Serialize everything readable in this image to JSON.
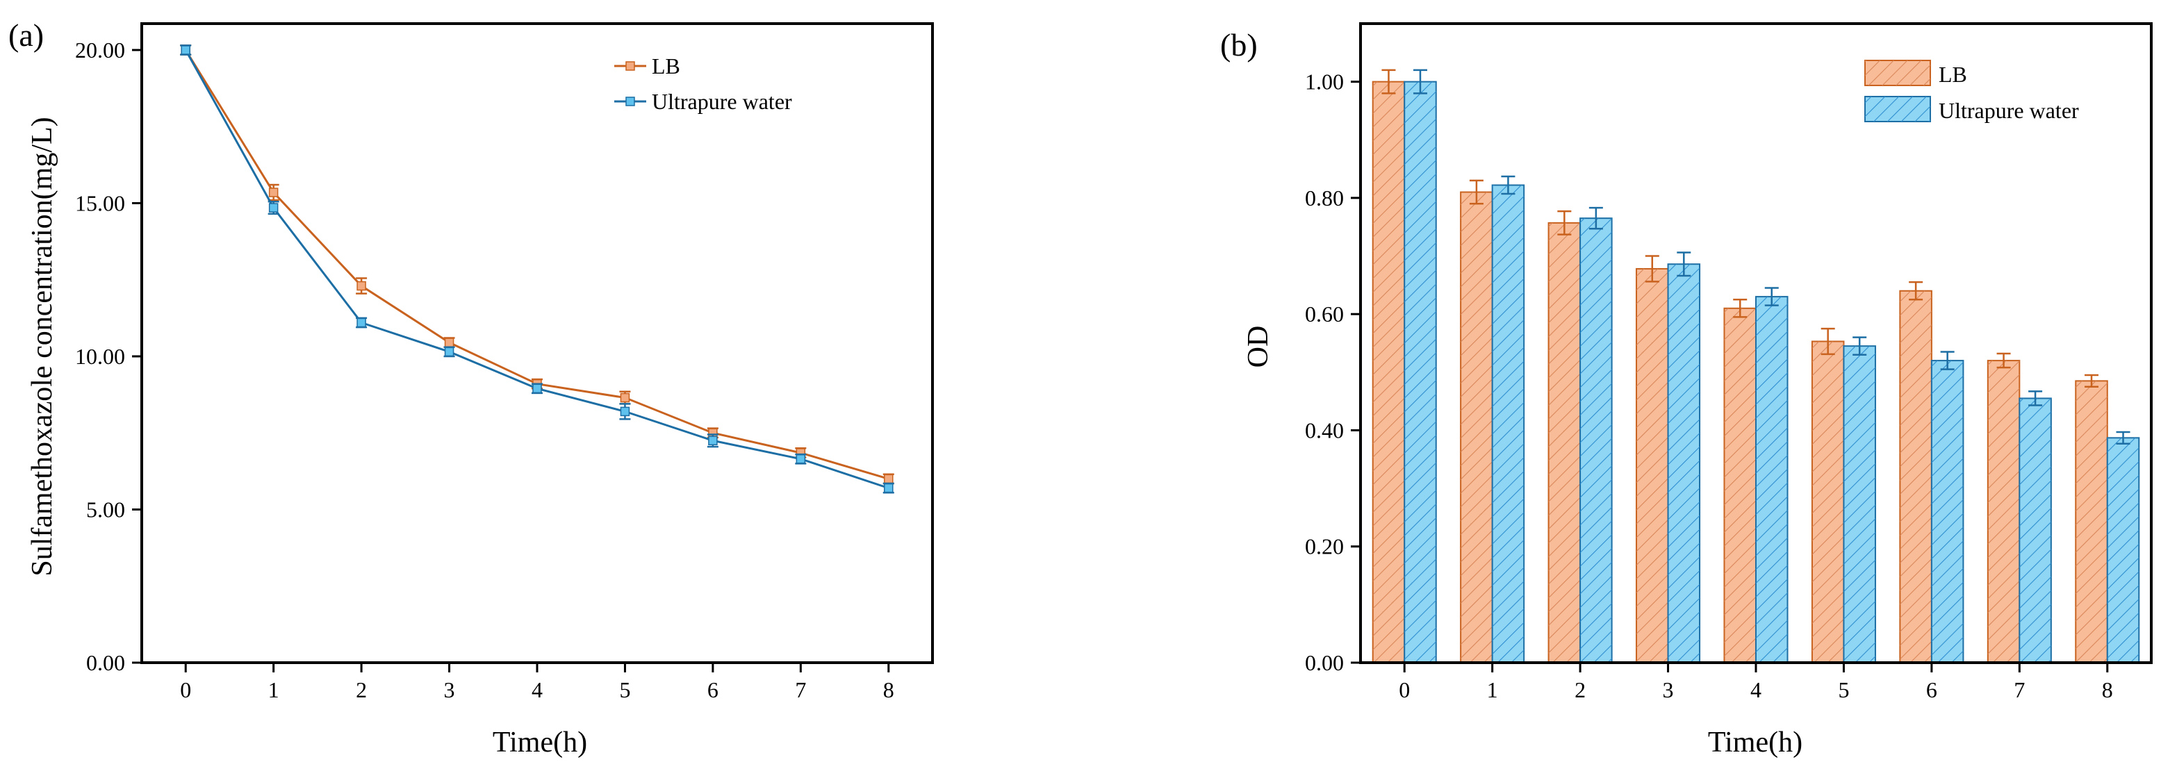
{
  "chart_data": [
    {
      "type": "line",
      "panel_label": "(a)",
      "title": "",
      "xlabel": "Time(h)",
      "ylabel": "Sulfamethoxazole concentration(mg/L)",
      "x": [
        0,
        1,
        2,
        3,
        4,
        5,
        6,
        7,
        8
      ],
      "x_ticks": [
        "0",
        "1",
        "2",
        "3",
        "4",
        "5",
        "6",
        "7",
        "8"
      ],
      "xlim": [
        -0.5,
        8.5
      ],
      "ylim": [
        0,
        20.0
      ],
      "y_ticks": [
        "0.00",
        "5.00",
        "10.00",
        "15.00",
        "20.00"
      ],
      "y_tick_values": [
        0,
        5,
        10,
        15,
        20
      ],
      "legend_position": "top-right",
      "grid": false,
      "series": [
        {
          "name": "LB",
          "color": "#c8621e",
          "marker_color": "#f2aa7e",
          "values": [
            20.0,
            15.35,
            12.3,
            10.45,
            9.1,
            8.65,
            7.5,
            6.85,
            6.0
          ],
          "errors": [
            0.15,
            0.25,
            0.25,
            0.15,
            0.15,
            0.2,
            0.15,
            0.15,
            0.15
          ]
        },
        {
          "name": "Ultrapure water",
          "color": "#1c6ea4",
          "marker_color": "#5ec1ee",
          "values": [
            20.0,
            14.85,
            11.1,
            10.15,
            8.95,
            8.2,
            7.25,
            6.65,
            5.7
          ],
          "errors": [
            0.15,
            0.2,
            0.15,
            0.15,
            0.15,
            0.25,
            0.2,
            0.15,
            0.15
          ]
        }
      ]
    },
    {
      "type": "bar",
      "panel_label": "(b)",
      "title": "",
      "xlabel": "Time(h)",
      "ylabel": "OD",
      "categories": [
        "0",
        "1",
        "2",
        "3",
        "4",
        "5",
        "6",
        "7",
        "8"
      ],
      "xlim": [
        -0.5,
        8.5
      ],
      "ylim": [
        0,
        1.1
      ],
      "y_ticks": [
        "0.00",
        "0.20",
        "0.40",
        "0.60",
        "0.80",
        "1.00"
      ],
      "y_tick_values": [
        0,
        0.2,
        0.4,
        0.6,
        0.8,
        1.0
      ],
      "legend_position": "top-right",
      "grid": false,
      "series": [
        {
          "name": "LB",
          "fill": "#f8bd98",
          "hatch": "#d9865a",
          "edge": "#c8621e",
          "values": [
            1.0,
            0.81,
            0.757,
            0.678,
            0.61,
            0.553,
            0.64,
            0.52,
            0.485
          ],
          "errors": [
            0.02,
            0.02,
            0.02,
            0.022,
            0.015,
            0.022,
            0.015,
            0.012,
            0.01
          ]
        },
        {
          "name": "Ultrapure water",
          "fill": "#8fd6f5",
          "hatch": "#2f8fcf",
          "edge": "#1c6ea4",
          "values": [
            1.0,
            0.822,
            0.765,
            0.686,
            0.63,
            0.545,
            0.52,
            0.455,
            0.387
          ],
          "errors": [
            0.02,
            0.015,
            0.018,
            0.02,
            0.015,
            0.015,
            0.015,
            0.012,
            0.01
          ]
        }
      ]
    }
  ]
}
